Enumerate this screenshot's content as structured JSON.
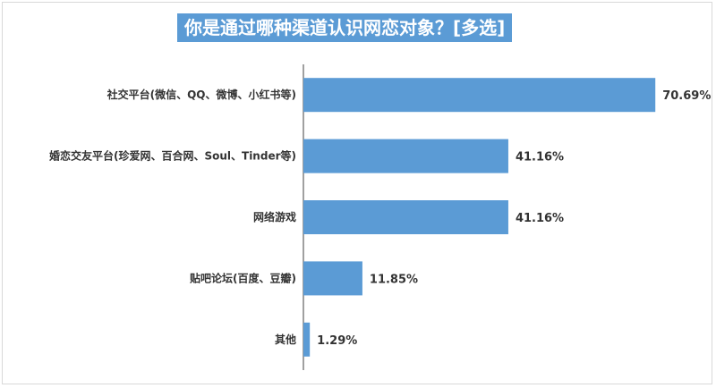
{
  "chart_data": {
    "type": "bar",
    "orientation": "horizontal",
    "title": "你是通过哪种渠道认识网恋对象？[多选]",
    "categories": [
      "社交平台(微信、QQ、微博、小红书等)",
      "婚恋交友平台(珍爱网、百合网、Soul、Tinder等)",
      "网络游戏",
      "贴吧论坛(百度、豆瓣)",
      "其他"
    ],
    "values": [
      70.69,
      41.16,
      41.16,
      11.85,
      1.29
    ],
    "value_labels": [
      "70.69%",
      "41.16%",
      "41.16%",
      "11.85%",
      "1.29%"
    ],
    "xlim": [
      0,
      80
    ],
    "grid": false,
    "legend": "none",
    "bar_color": "#5b9bd5",
    "title_bg_color": "#5b9bd5"
  }
}
